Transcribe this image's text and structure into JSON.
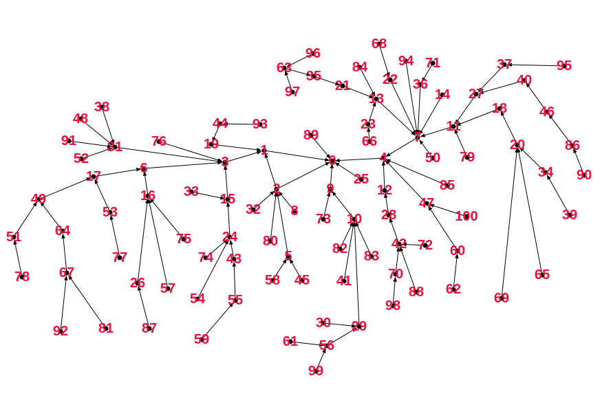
{
  "diagram": {
    "type": "directed-tree",
    "label_color": "#e8103c",
    "edge_color": "#000000",
    "nodes": [
      "0",
      "1",
      "2",
      "3",
      "4",
      "5",
      "6",
      "7",
      "8",
      "9",
      "10",
      "11",
      "12",
      "13",
      "14",
      "15",
      "16",
      "17",
      "18",
      "19",
      "20",
      "21",
      "22",
      "23",
      "24",
      "25",
      "26",
      "27",
      "28",
      "29",
      "30",
      "31",
      "32",
      "33",
      "34",
      "35",
      "36",
      "37",
      "38",
      "39",
      "40",
      "41",
      "42",
      "43",
      "44",
      "45",
      "46",
      "47",
      "48",
      "49",
      "50",
      "51",
      "52",
      "53",
      "54",
      "55",
      "56",
      "57",
      "58",
      "59",
      "60",
      "61",
      "62",
      "63",
      "64",
      "65",
      "66",
      "67",
      "68",
      "69",
      "70",
      "71",
      "72",
      "73",
      "74",
      "75",
      "76",
      "77",
      "78",
      "79",
      "80",
      "81",
      "82",
      "83",
      "84",
      "85",
      "86",
      "87",
      "88",
      "89",
      "90",
      "91",
      "92",
      "93",
      "94",
      "95",
      "96",
      "97",
      "98",
      "99",
      "100"
    ],
    "edges": [
      [
        "1",
        "0"
      ],
      [
        "2",
        "0"
      ],
      [
        "9",
        "0"
      ],
      [
        "25",
        "0"
      ],
      [
        "89",
        "0"
      ],
      [
        "4",
        "0"
      ],
      [
        "3",
        "1"
      ],
      [
        "19",
        "1"
      ],
      [
        "2",
        "1"
      ],
      [
        "32",
        "2"
      ],
      [
        "8",
        "2"
      ],
      [
        "80",
        "2"
      ],
      [
        "5",
        "2"
      ],
      [
        "31",
        "3"
      ],
      [
        "76",
        "3"
      ],
      [
        "6",
        "3"
      ],
      [
        "15",
        "3"
      ],
      [
        "44",
        "19"
      ],
      [
        "93",
        "44"
      ],
      [
        "48",
        "31"
      ],
      [
        "38",
        "31"
      ],
      [
        "91",
        "31"
      ],
      [
        "52",
        "31"
      ],
      [
        "17",
        "6"
      ],
      [
        "16",
        "6"
      ],
      [
        "49",
        "17"
      ],
      [
        "53",
        "17"
      ],
      [
        "77",
        "53"
      ],
      [
        "51",
        "49"
      ],
      [
        "64",
        "49"
      ],
      [
        "78",
        "51"
      ],
      [
        "67",
        "64"
      ],
      [
        "92",
        "67"
      ],
      [
        "81",
        "67"
      ],
      [
        "26",
        "16"
      ],
      [
        "57",
        "16"
      ],
      [
        "75",
        "16"
      ],
      [
        "87",
        "26"
      ],
      [
        "33",
        "15"
      ],
      [
        "24",
        "15"
      ],
      [
        "74",
        "24"
      ],
      [
        "43",
        "24"
      ],
      [
        "54",
        "24"
      ],
      [
        "55",
        "43"
      ],
      [
        "59",
        "55"
      ],
      [
        "58",
        "5"
      ],
      [
        "45",
        "5"
      ],
      [
        "73",
        "9"
      ],
      [
        "10",
        "9"
      ],
      [
        "82",
        "10"
      ],
      [
        "41",
        "10"
      ],
      [
        "83",
        "10"
      ],
      [
        "29",
        "10"
      ],
      [
        "30",
        "29"
      ],
      [
        "56",
        "29"
      ],
      [
        "61",
        "56"
      ],
      [
        "99",
        "56"
      ],
      [
        "7",
        "4"
      ],
      [
        "12",
        "4"
      ],
      [
        "47",
        "4"
      ],
      [
        "85",
        "4"
      ],
      [
        "28",
        "12"
      ],
      [
        "42",
        "28"
      ],
      [
        "72",
        "42"
      ],
      [
        "70",
        "42"
      ],
      [
        "88",
        "42"
      ],
      [
        "98",
        "70"
      ],
      [
        "100",
        "47"
      ],
      [
        "60",
        "47"
      ],
      [
        "62",
        "60"
      ],
      [
        "13",
        "7"
      ],
      [
        "22",
        "7"
      ],
      [
        "36",
        "7"
      ],
      [
        "14",
        "7"
      ],
      [
        "94",
        "7"
      ],
      [
        "50",
        "7"
      ],
      [
        "11",
        "7"
      ],
      [
        "23",
        "13"
      ],
      [
        "84",
        "13"
      ],
      [
        "21",
        "13"
      ],
      [
        "66",
        "23"
      ],
      [
        "35",
        "21"
      ],
      [
        "63",
        "35"
      ],
      [
        "96",
        "63"
      ],
      [
        "97",
        "63"
      ],
      [
        "68",
        "22"
      ],
      [
        "71",
        "36"
      ],
      [
        "27",
        "11"
      ],
      [
        "18",
        "11"
      ],
      [
        "79",
        "11"
      ],
      [
        "37",
        "27"
      ],
      [
        "40",
        "27"
      ],
      [
        "95",
        "37"
      ],
      [
        "46",
        "40"
      ],
      [
        "86",
        "46"
      ],
      [
        "90",
        "86"
      ],
      [
        "20",
        "18"
      ],
      [
        "34",
        "20"
      ],
      [
        "69",
        "20"
      ],
      [
        "65",
        "20"
      ],
      [
        "39",
        "34"
      ]
    ]
  }
}
